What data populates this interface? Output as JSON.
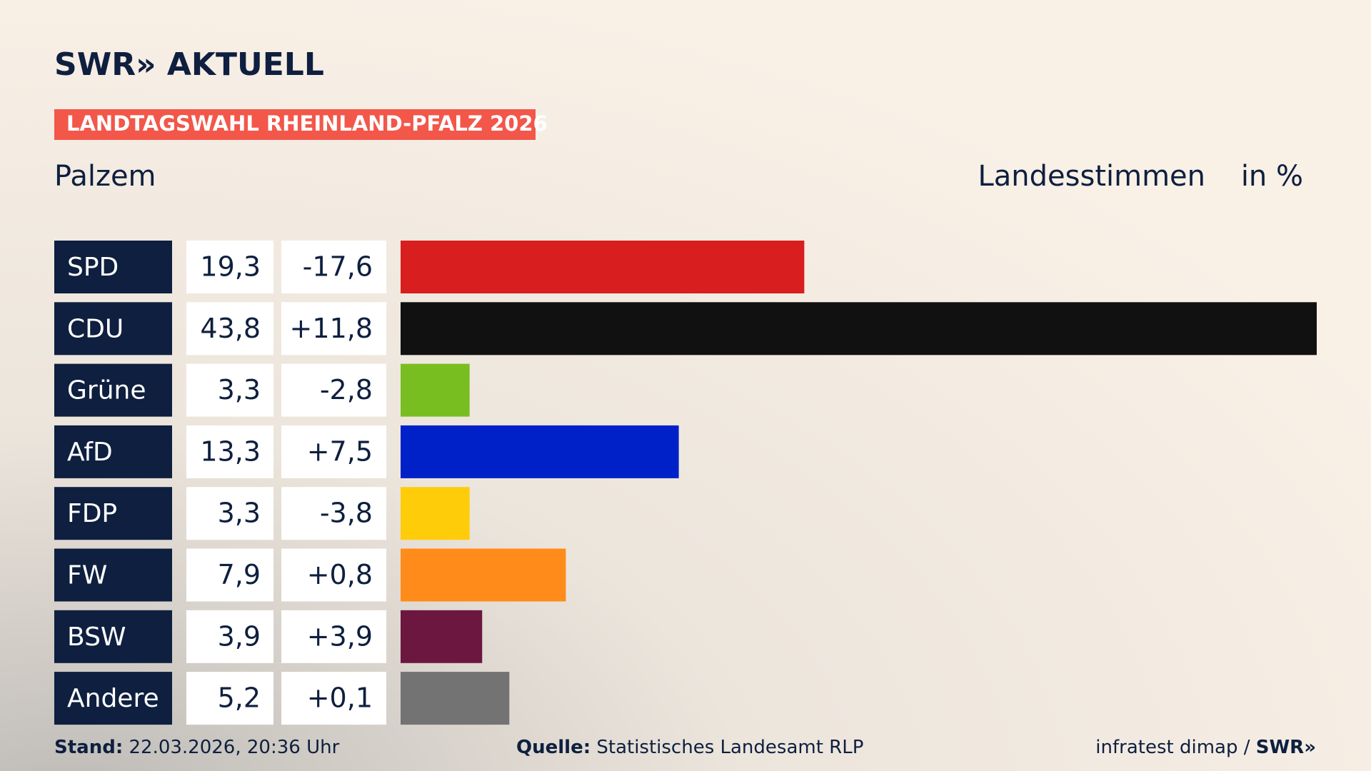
{
  "brand": "SWR» AKTUELL",
  "chart_data": {
    "type": "bar",
    "title": "LANDTAGSWAHL RHEINLAND-PFALZ 2026",
    "subtitle": "Palzem",
    "value_heading": "Landesstimmen",
    "unit": "in %",
    "categories": [
      "SPD",
      "CDU",
      "Grüne",
      "AfD",
      "FDP",
      "FW",
      "BSW",
      "Andere"
    ],
    "values": [
      19.3,
      43.8,
      3.3,
      13.3,
      3.3,
      7.9,
      3.9,
      5.2
    ],
    "value_labels": [
      "19,3",
      "43,8",
      "3,3",
      "13,3",
      "3,3",
      "7,9",
      "3,9",
      "5,2"
    ],
    "changes": [
      -17.6,
      11.8,
      -2.8,
      7.5,
      -3.8,
      0.8,
      3.9,
      0.1
    ],
    "change_labels": [
      "-17,6",
      "+11,8",
      "-2,8",
      "+7,5",
      "-3,8",
      "+0,8",
      "+3,9",
      "+0,1"
    ],
    "colors": [
      "#d81e1e",
      "#111111",
      "#78be20",
      "#0021c8",
      "#ffcc0a",
      "#ff8c1a",
      "#6b1740",
      "#737373"
    ]
  },
  "footer": {
    "stand_label": "Stand:",
    "stand": "22.03.2026, 20:36 Uhr",
    "source_label": "Quelle:",
    "source": "Statistisches Landesamt RLP",
    "credit": "infratest dimap /",
    "credit_logo": "SWR»"
  }
}
